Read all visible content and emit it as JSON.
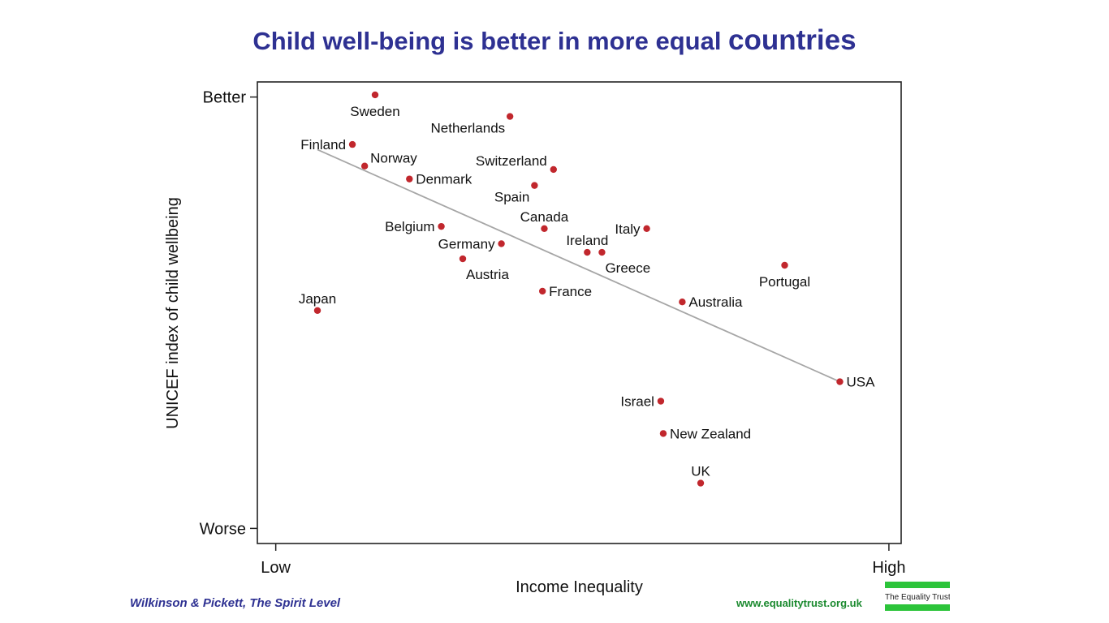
{
  "slide": {
    "title_main": "Child well-being is better in more equal ",
    "title_big": "countries",
    "credit": "Wilkinson & Pickett, The Spirit Level",
    "url": "www.equalitytrust.org.uk",
    "logo_text": "The Equality Trust"
  },
  "colors": {
    "title": "#2e3192",
    "point": "#c1272d",
    "trend": "#a6a6a6",
    "url": "#1b8a2f",
    "logo_bars": "#2cc43a"
  },
  "chart_data": {
    "type": "scatter",
    "title": "Child well-being is better in more equal countries",
    "xlabel": "Income Inequality",
    "ylabel": "UNICEF index of child wellbeing",
    "x_ticks": [
      {
        "value": 0,
        "label": "Low"
      },
      {
        "value": 100,
        "label": "High"
      }
    ],
    "y_ticks": [
      {
        "value": 100,
        "label": "Better"
      },
      {
        "value": 0,
        "label": "Worse"
      }
    ],
    "xlim": [
      -3,
      102
    ],
    "ylim": [
      -3.5,
      103.5
    ],
    "grid": false,
    "points": [
      {
        "name": "Sweden",
        "x": 16.2,
        "y": 100.5,
        "label_pos": "below"
      },
      {
        "name": "Netherlands",
        "x": 38.2,
        "y": 95.5,
        "label_pos": "below-left"
      },
      {
        "name": "Finland",
        "x": 12.5,
        "y": 89.0,
        "label_pos": "left"
      },
      {
        "name": "Norway",
        "x": 14.5,
        "y": 84.0,
        "label_pos": "above-right"
      },
      {
        "name": "Switzerland",
        "x": 45.3,
        "y": 83.2,
        "label_pos": "above-left"
      },
      {
        "name": "Denmark",
        "x": 21.8,
        "y": 81.0,
        "label_pos": "right"
      },
      {
        "name": "Spain",
        "x": 42.2,
        "y": 79.5,
        "label_pos": "below-left"
      },
      {
        "name": "Belgium",
        "x": 27.0,
        "y": 70.0,
        "label_pos": "left"
      },
      {
        "name": "Canada",
        "x": 43.8,
        "y": 69.5,
        "label_pos": "above"
      },
      {
        "name": "Italy",
        "x": 60.5,
        "y": 69.5,
        "label_pos": "left"
      },
      {
        "name": "Germany",
        "x": 36.8,
        "y": 66.0,
        "label_pos": "left"
      },
      {
        "name": "Ireland",
        "x": 50.8,
        "y": 64.0,
        "label_pos": "above"
      },
      {
        "name": "Greece",
        "x": 53.2,
        "y": 64.0,
        "label_pos": "below-right"
      },
      {
        "name": "Austria",
        "x": 30.5,
        "y": 62.5,
        "label_pos": "below-right"
      },
      {
        "name": "Portugal",
        "x": 83.0,
        "y": 61.0,
        "label_pos": "below"
      },
      {
        "name": "France",
        "x": 43.5,
        "y": 55.0,
        "label_pos": "right"
      },
      {
        "name": "Australia",
        "x": 66.3,
        "y": 52.5,
        "label_pos": "right"
      },
      {
        "name": "Japan",
        "x": 6.8,
        "y": 50.5,
        "label_pos": "above"
      },
      {
        "name": "USA",
        "x": 92.0,
        "y": 34.0,
        "label_pos": "right"
      },
      {
        "name": "Israel",
        "x": 62.8,
        "y": 29.5,
        "label_pos": "left"
      },
      {
        "name": "New Zealand",
        "x": 63.2,
        "y": 22.0,
        "label_pos": "right"
      },
      {
        "name": "UK",
        "x": 69.3,
        "y": 10.5,
        "label_pos": "above"
      }
    ],
    "trend_line": {
      "x1": 6.8,
      "y1": 87.8,
      "x2": 92.0,
      "y2": 34.0
    }
  }
}
